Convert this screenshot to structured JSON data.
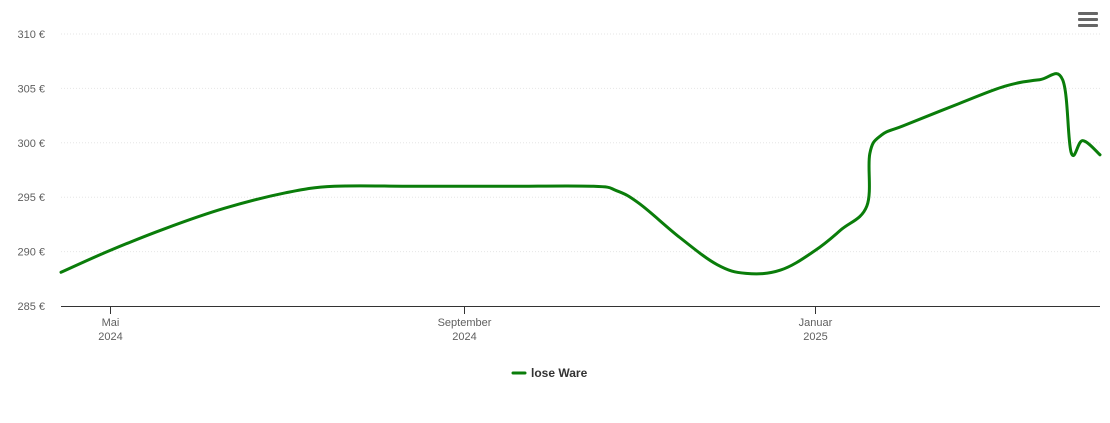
{
  "toolbar": {
    "menu_icon": "hamburger-menu-icon"
  },
  "chart_data": {
    "type": "line",
    "title": "",
    "xlabel": "",
    "ylabel": "",
    "ylim": [
      285,
      310
    ],
    "y_ticks": [
      "285 €",
      "290 €",
      "295 €",
      "300 €",
      "305 €",
      "310 €"
    ],
    "y_tick_values": [
      285,
      290,
      295,
      300,
      305,
      310
    ],
    "x_range": [
      "2024-04-14",
      "2025-04-10"
    ],
    "x_ticks": [
      {
        "date": "2024-05-01",
        "line1": "Mai",
        "line2": "2024"
      },
      {
        "date": "2024-09-01",
        "line1": "September",
        "line2": "2024"
      },
      {
        "date": "2025-01-01",
        "line1": "Januar",
        "line2": "2025"
      }
    ],
    "grid": true,
    "legend": "bottom-center",
    "series": [
      {
        "name": "lose Ware",
        "color": "#0a7d0a",
        "points": [
          [
            "2024-04-14",
            288.1
          ],
          [
            "2024-05-01",
            290.1
          ],
          [
            "2024-05-20",
            292.1
          ],
          [
            "2024-06-10",
            294.0
          ],
          [
            "2024-07-01",
            295.4
          ],
          [
            "2024-07-18",
            296.0
          ],
          [
            "2024-08-15",
            296.0
          ],
          [
            "2024-09-15",
            296.0
          ],
          [
            "2024-10-16",
            296.0
          ],
          [
            "2024-10-24",
            295.6
          ],
          [
            "2024-11-01",
            294.4
          ],
          [
            "2024-11-15",
            291.3
          ],
          [
            "2024-11-28",
            288.8
          ],
          [
            "2024-12-08",
            288.0
          ],
          [
            "2024-12-20",
            288.3
          ],
          [
            "2025-01-01",
            290.1
          ],
          [
            "2025-01-10",
            292.0
          ],
          [
            "2025-01-19",
            294.2
          ],
          [
            "2025-01-20",
            299.0
          ],
          [
            "2025-01-24",
            300.7
          ],
          [
            "2025-02-01",
            301.6
          ],
          [
            "2025-02-20",
            303.6
          ],
          [
            "2025-03-08",
            305.2
          ],
          [
            "2025-03-20",
            305.8
          ],
          [
            "2025-03-28",
            305.8
          ],
          [
            "2025-03-31",
            299.1
          ],
          [
            "2025-04-04",
            300.2
          ],
          [
            "2025-04-10",
            298.9
          ]
        ]
      }
    ]
  }
}
